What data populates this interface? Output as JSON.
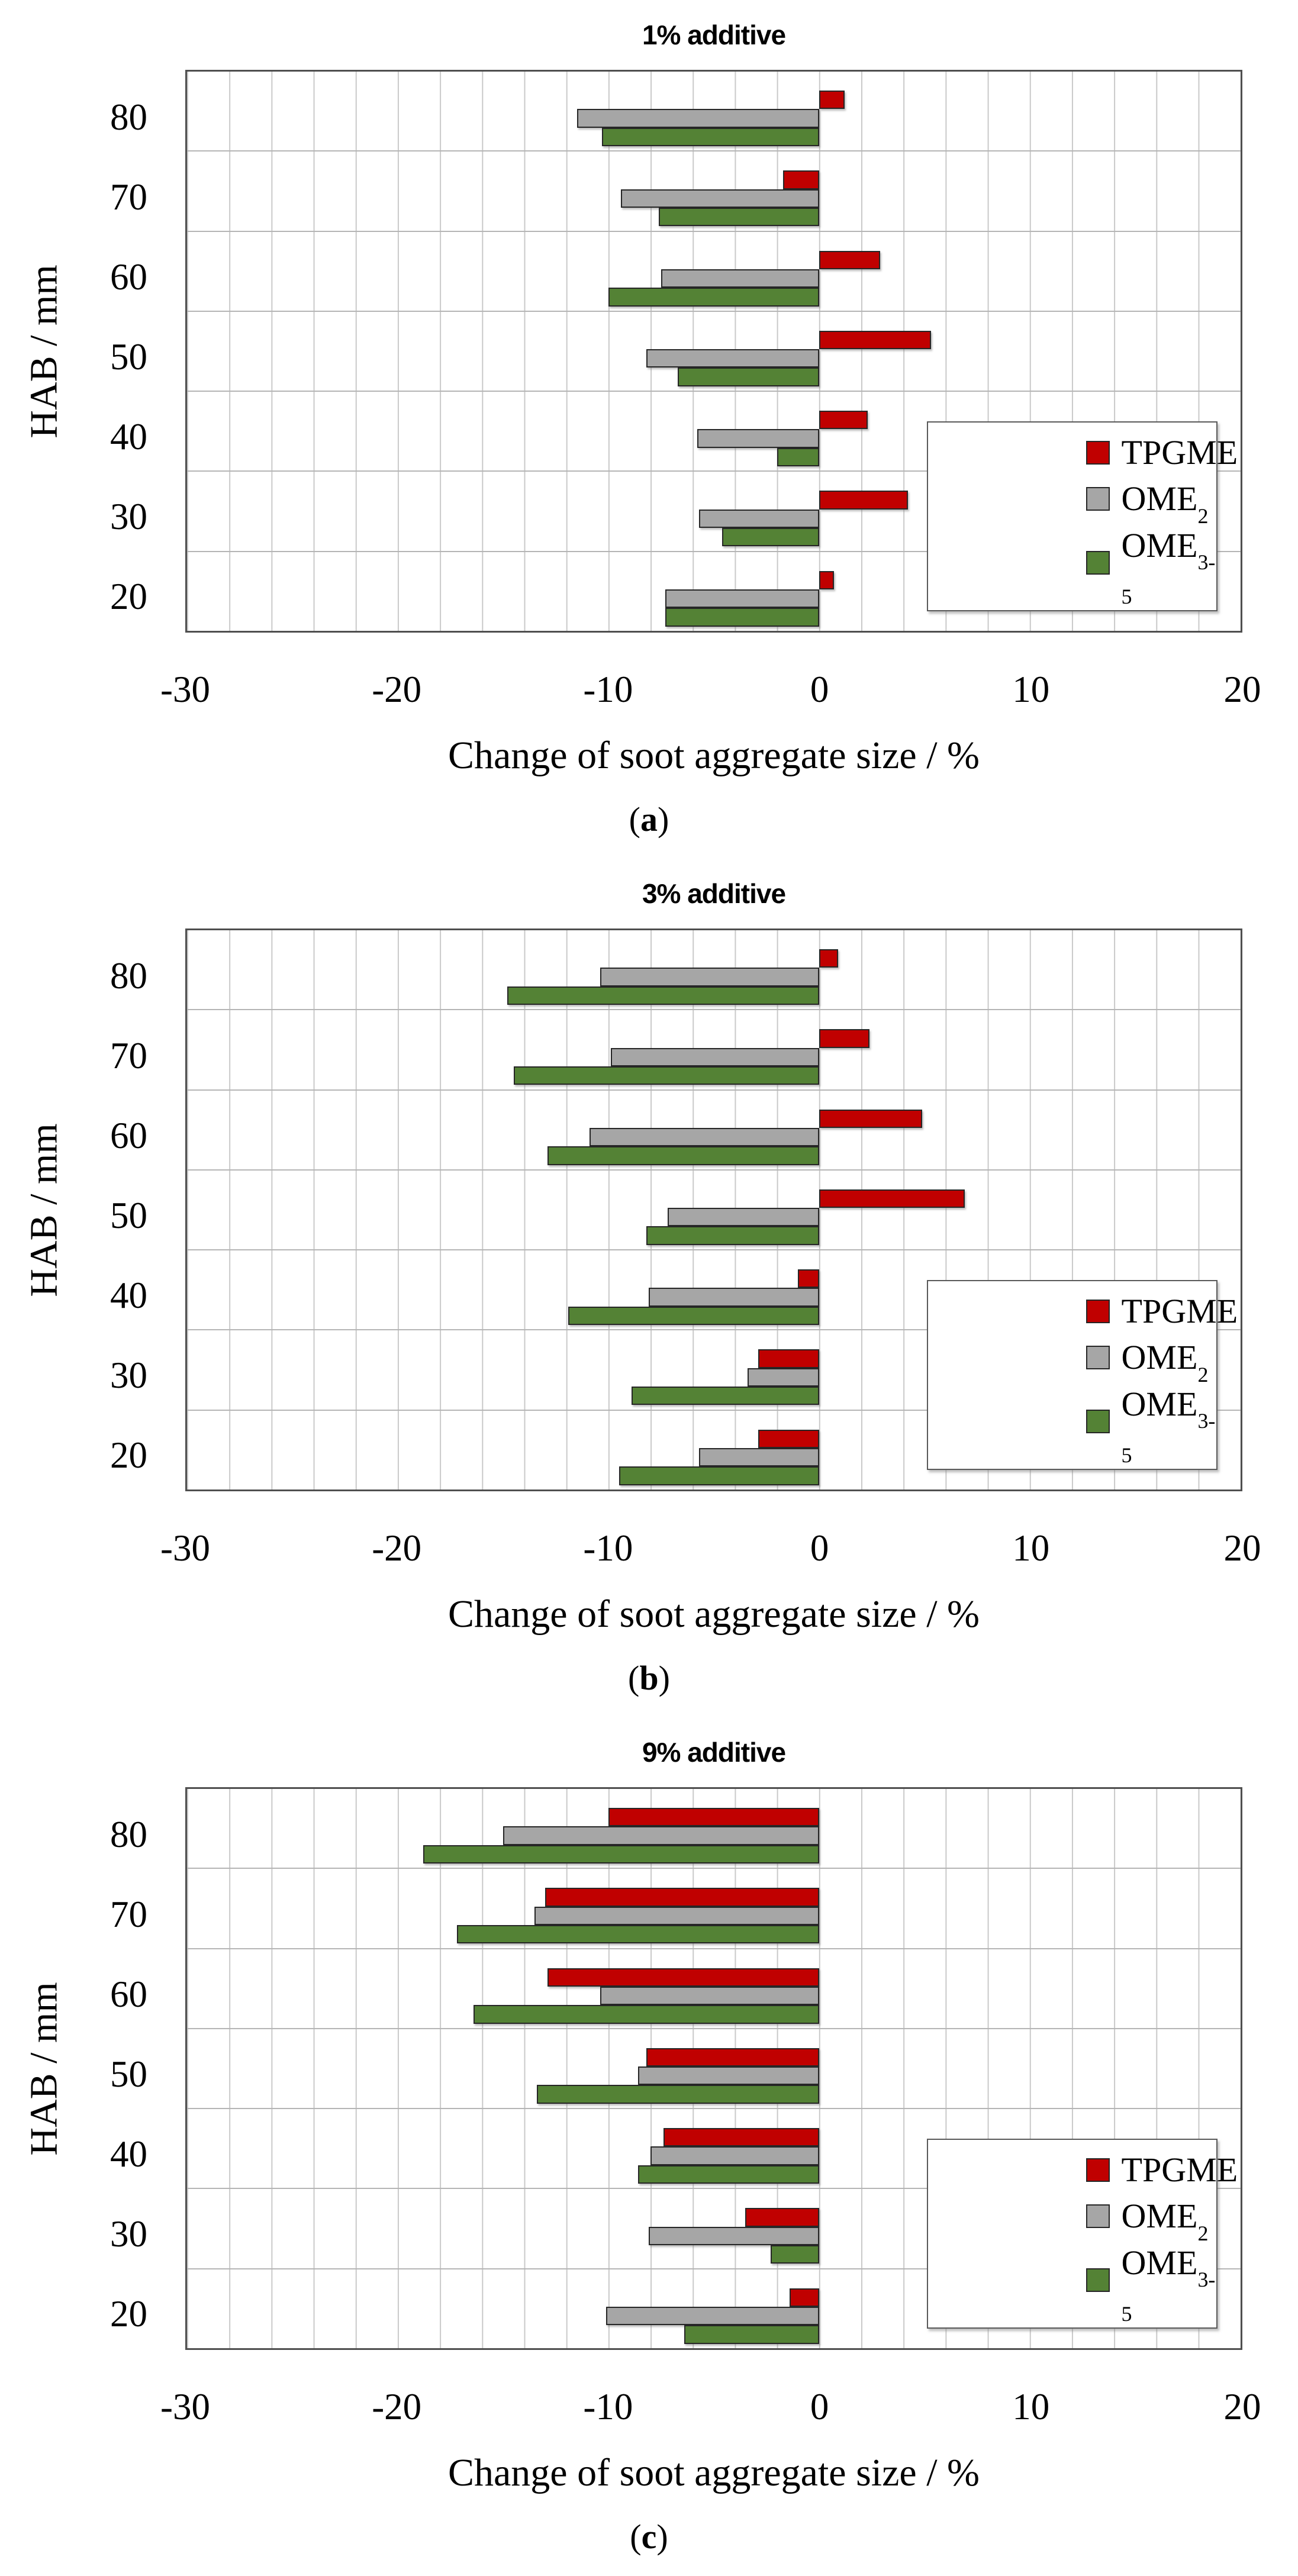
{
  "figure": {
    "x_axis_label": "Change of soot aggregate size / %",
    "y_axis_label": "HAB / mm",
    "caption_open": "(",
    "caption_close": ")",
    "x_ticks": [
      -30,
      -20,
      -10,
      0,
      10,
      20
    ],
    "x_range": [
      -30,
      20
    ],
    "minor_grid_step": 2,
    "categories": [
      80,
      70,
      60,
      50,
      40,
      30,
      20
    ],
    "series_meta": [
      {
        "key": "tpgme",
        "base": "TPGME",
        "sub": "",
        "color": "#C00000"
      },
      {
        "key": "ome2",
        "base": "OME",
        "sub": "2",
        "color": "#A6A6A6"
      },
      {
        "key": "ome3-5",
        "base": "OME",
        "sub": "3-5",
        "color": "#548235"
      }
    ],
    "colors": {
      "tpgme": "#C00000",
      "ome2": "#A6A6A6",
      "ome3_5": "#548235",
      "grid": "#c9c9c9",
      "plot_border": "#4f4f4f"
    }
  },
  "chart_data": [
    {
      "type": "bar",
      "orientation": "horizontal",
      "title": "1% additive",
      "caption_letter": "a",
      "xlabel": "Change of soot aggregate size / %",
      "ylabel": "HAB / mm",
      "xlim": [
        -30,
        20
      ],
      "grid": true,
      "legend_position": "lower right",
      "categories": [
        80,
        70,
        60,
        50,
        40,
        30,
        20
      ],
      "series": [
        {
          "name": "TPGME",
          "values": [
            1.2,
            -1.7,
            2.9,
            5.3,
            2.3,
            4.2,
            0.7
          ]
        },
        {
          "name": "OME2",
          "values": [
            -11.5,
            -9.4,
            -7.5,
            -8.2,
            -5.8,
            -5.7,
            -7.3
          ]
        },
        {
          "name": "OME3-5",
          "values": [
            -10.3,
            -7.6,
            -10.0,
            -6.7,
            -2.0,
            -4.6,
            -7.3
          ]
        }
      ]
    },
    {
      "type": "bar",
      "orientation": "horizontal",
      "title": "3% additive",
      "caption_letter": "b",
      "xlabel": "Change of soot aggregate size / %",
      "ylabel": "HAB / mm",
      "xlim": [
        -30,
        20
      ],
      "grid": true,
      "legend_position": "lower right",
      "categories": [
        80,
        70,
        60,
        50,
        40,
        30,
        20
      ],
      "series": [
        {
          "name": "TPGME",
          "values": [
            0.9,
            2.4,
            4.9,
            6.9,
            -1.0,
            -2.9,
            -2.9
          ]
        },
        {
          "name": "OME2",
          "values": [
            -10.4,
            -9.9,
            -10.9,
            -7.2,
            -8.1,
            -3.4,
            -5.7
          ]
        },
        {
          "name": "OME3-5",
          "values": [
            -14.8,
            -14.5,
            -12.9,
            -8.2,
            -11.9,
            -8.9,
            -9.5
          ]
        }
      ]
    },
    {
      "type": "bar",
      "orientation": "horizontal",
      "title": "9% additive",
      "caption_letter": "c",
      "xlabel": "Change of soot aggregate size / %",
      "ylabel": "HAB / mm",
      "xlim": [
        -30,
        20
      ],
      "grid": true,
      "legend_position": "lower right",
      "categories": [
        80,
        70,
        60,
        50,
        40,
        30,
        20
      ],
      "series": [
        {
          "name": "TPGME",
          "values": [
            -10.0,
            -13.0,
            -12.9,
            -8.2,
            -7.4,
            -3.5,
            -1.4
          ]
        },
        {
          "name": "OME2",
          "values": [
            -15.0,
            -13.5,
            -10.4,
            -8.6,
            -8.0,
            -8.1,
            -10.1
          ]
        },
        {
          "name": "OME3-5",
          "values": [
            -18.8,
            -17.2,
            -16.4,
            -13.4,
            -8.6,
            -2.3,
            -6.4
          ]
        }
      ]
    }
  ]
}
